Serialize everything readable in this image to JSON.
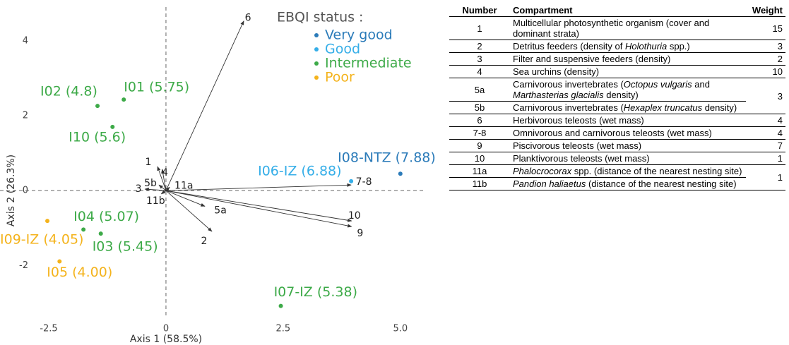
{
  "chart_data": {
    "type": "biplot",
    "xlabel": "Axis 1 (58.5%)",
    "ylabel": "Axis 2 (26.3%)",
    "xlim": [
      -3.54,
      5.5
    ],
    "ylim": [
      -3.2,
      4.9
    ],
    "xticks": [
      {
        "value": -2.5,
        "label": "-2.5"
      },
      0,
      {
        "value": 2.5,
        "label": "2.5"
      },
      {
        "value": 5,
        "label": "5.0"
      }
    ],
    "yticks": [
      -2,
      0,
      2,
      4
    ],
    "legend_title": "EBQI status :",
    "legend": "top right",
    "series": [
      {
        "name": "Very good",
        "color": "#2b7bb9",
        "x": [
          5.0
        ],
        "y": [
          0.45
        ],
        "labels": [
          "I08-NTZ (7.88)"
        ]
      },
      {
        "name": "Good",
        "color": "#35aee8",
        "x": [
          3.95
        ],
        "y": [
          0.25
        ],
        "labels": [
          "I06-IZ (6.88)"
        ]
      },
      {
        "name": "Intermediate",
        "color": "#3daa48",
        "x": [
          -1.46,
          -0.9,
          -1.14,
          -1.76,
          -1.39,
          2.45
        ],
        "y": [
          2.26,
          2.43,
          1.7,
          -1.04,
          -1.15,
          -3.08
        ],
        "labels": [
          "I02 (4.8)",
          "I01 (5.75)",
          "I10 (5.6)",
          "I04 (5.07)",
          "I03 (5.45)",
          "I07-IZ (5.38)"
        ]
      },
      {
        "name": "Poor",
        "color": "#f4b31c",
        "x": [
          -2.53,
          -2.27
        ],
        "y": [
          -0.81,
          -1.89
        ],
        "labels": [
          "I09-IZ (4.05)",
          "I05 (4.00)"
        ]
      }
    ],
    "arrows": [
      {
        "label": "6",
        "x": 1.66,
        "y": 4.53
      },
      {
        "label": "1",
        "x": -0.18,
        "y": 0.64
      },
      {
        "label": "4",
        "x": -0.08,
        "y": 0.57
      },
      {
        "label": "5b",
        "x": -0.15,
        "y": 0.15
      },
      {
        "label": "3",
        "x": -0.45,
        "y": 0.04
      },
      {
        "label": "11a",
        "x": 0.08,
        "y": 0.09
      },
      {
        "label": "11b",
        "x": -0.1,
        "y": -0.09
      },
      {
        "label": "5a",
        "x": 0.83,
        "y": -0.42
      },
      {
        "label": "2",
        "x": 0.98,
        "y": -1.09
      },
      {
        "label": "7-8",
        "x": 3.95,
        "y": 0.15
      },
      {
        "label": "10",
        "x": 3.96,
        "y": -0.81
      },
      {
        "label": "9",
        "x": 3.96,
        "y": -0.96
      }
    ]
  },
  "table": {
    "columns": [
      "Number",
      "Compartment",
      "Weight"
    ],
    "rows": [
      {
        "number": "1",
        "compartment": [
          "Multicellular photosynthetic organism (cover and dominant strata)"
        ],
        "weight": "15"
      },
      {
        "number": "2",
        "compartment": [
          "Detritus feeders (density of ",
          {
            "text": "Holothuria",
            "italic": true
          },
          " spp.)"
        ],
        "weight": "3"
      },
      {
        "number": "3",
        "compartment": [
          "Filter and suspensive feeders (density)"
        ],
        "weight": "2"
      },
      {
        "number": "4",
        "compartment": [
          "Sea urchins (density)"
        ],
        "weight": "10"
      },
      {
        "number": "5a",
        "compartment": [
          "Carnivorous invertebrates (",
          {
            "text": "Octopus vulgaris",
            "italic": true
          },
          " and ",
          {
            "text": "Marthasterias glacialis",
            "italic": true
          },
          " density)"
        ],
        "weight": "3"
      },
      {
        "number": "5b",
        "compartment": [
          "Carnivorous invertebrates (",
          {
            "text": "Hexaplex truncatus",
            "italic": true
          },
          " density)"
        ],
        "weight": null
      },
      {
        "number": "6",
        "compartment": [
          "Herbivorous teleosts (wet mass)"
        ],
        "weight": "4"
      },
      {
        "number": "7-8",
        "compartment": [
          "Omnivorous and carnivorous teleosts (wet mass)"
        ],
        "weight": "4"
      },
      {
        "number": "9",
        "compartment": [
          "Piscivorous teleosts (wet mass)"
        ],
        "weight": "7"
      },
      {
        "number": "10",
        "compartment": [
          "Planktivorous teleosts (wet mass)"
        ],
        "weight": "1"
      },
      {
        "number": "11a",
        "compartment": [
          {
            "text": "Phalocrocorax",
            "italic": true
          },
          " spp. (distance of the nearest nesting site)"
        ],
        "weight": "1"
      },
      {
        "number": "11b",
        "compartment": [
          {
            "text": "Pandion haliaetus",
            "italic": true
          },
          " (distance of the nearest nesting site)"
        ],
        "weight": null
      }
    ]
  }
}
